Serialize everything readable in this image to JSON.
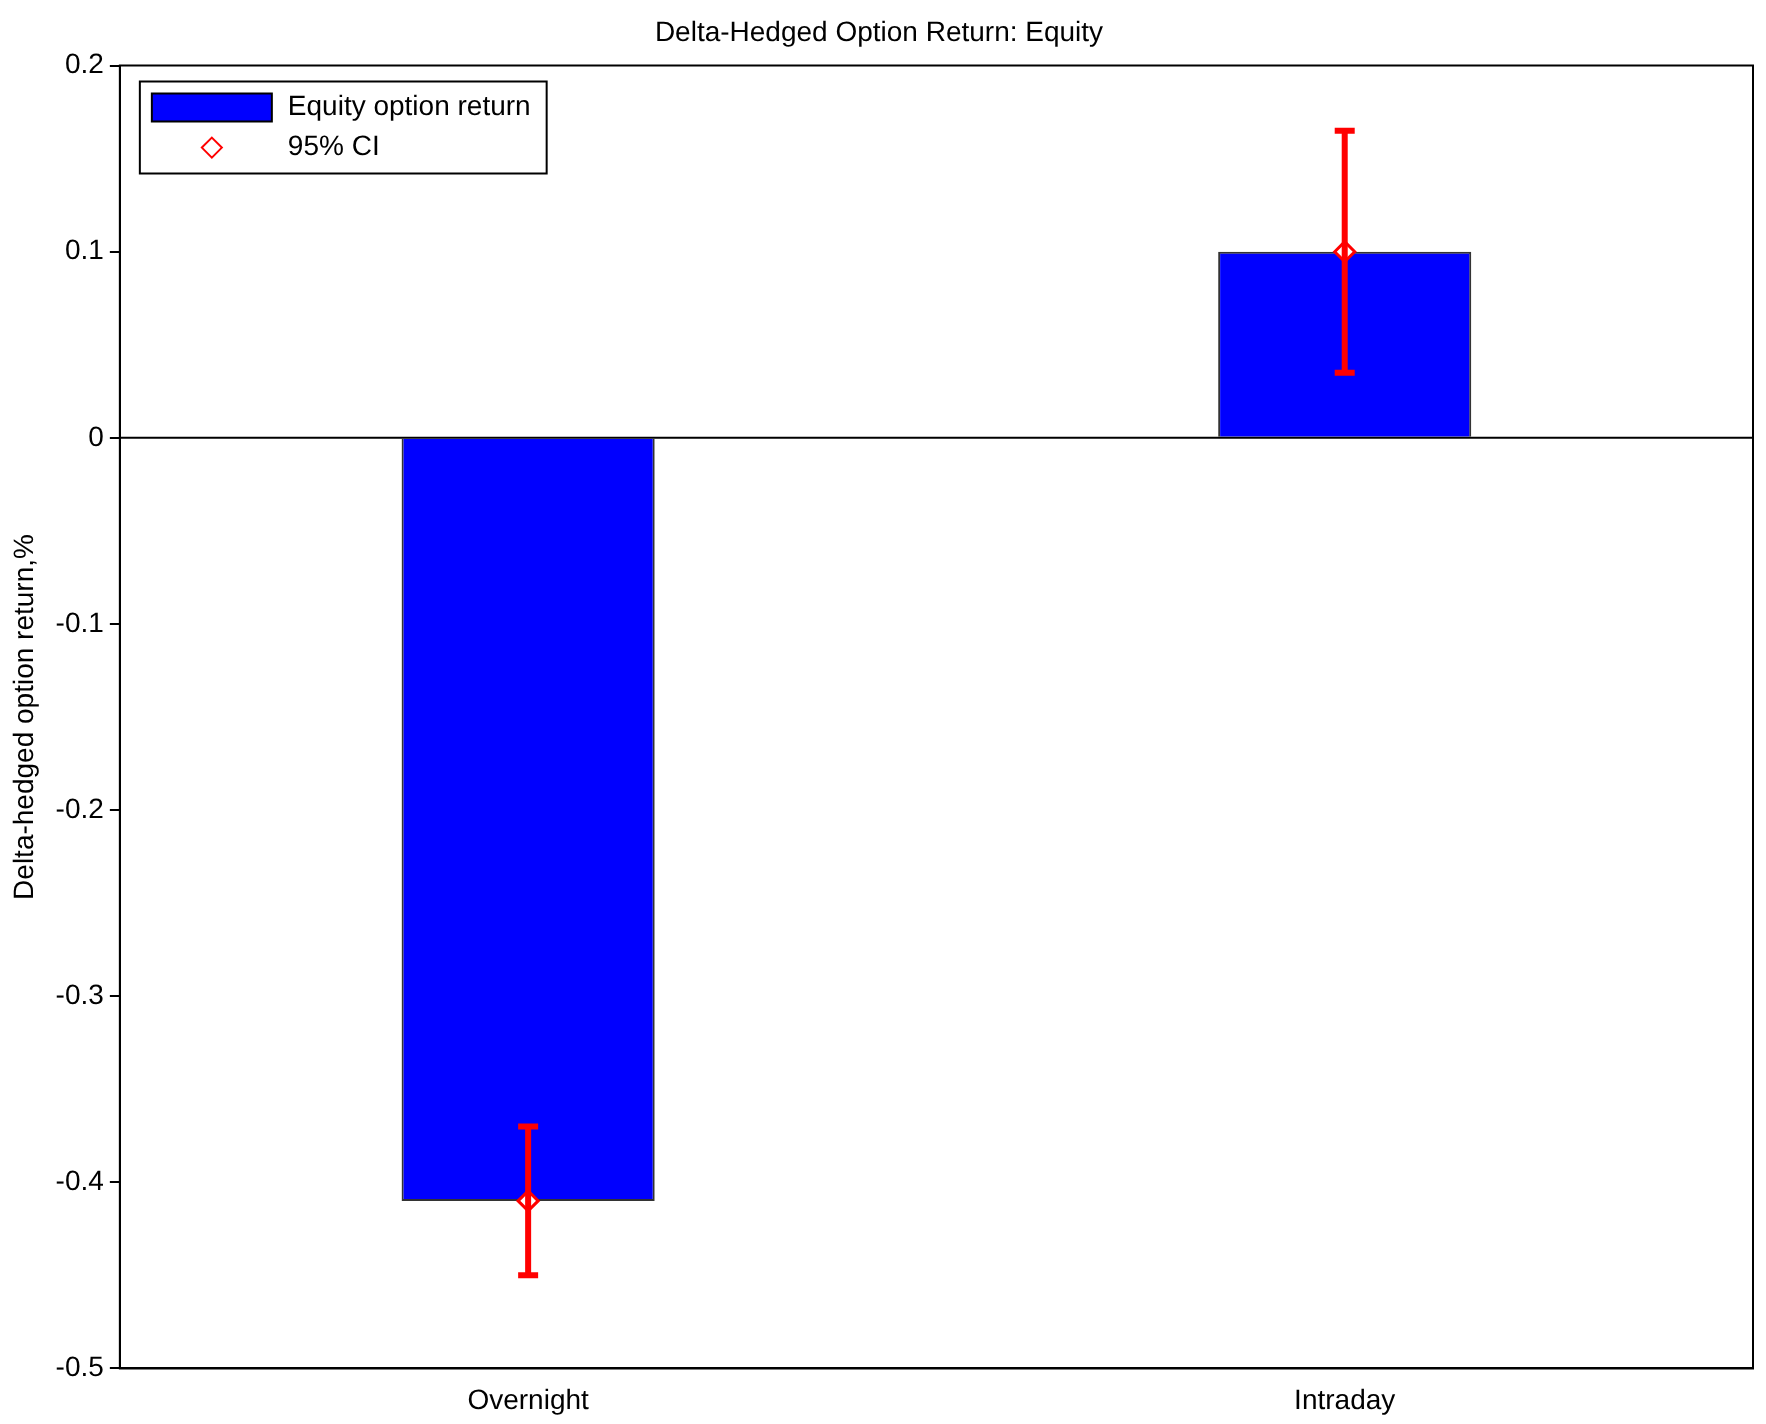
{
  "chart_data": {
    "type": "bar",
    "title": "Delta-Hedged Option Return: Equity",
    "ylabel": "Delta-hedged option return,%",
    "categories": [
      "Overnight",
      "Intraday"
    ],
    "series": [
      {
        "name": "Equity option return",
        "color": "#0000ff",
        "values": [
          -0.41,
          0.1
        ]
      },
      {
        "name": "95% CI",
        "type": "scatter",
        "color": "#ff0000",
        "x": [
          "Overnight",
          "Intraday"
        ],
        "values": [
          -0.41,
          0.1
        ],
        "errors": [
          [
            -0.45,
            -0.37
          ],
          [
            0.035,
            0.165
          ]
        ],
        "marker": "diamond"
      }
    ],
    "ref_lines": [
      {
        "axis": "y",
        "value": 0,
        "color": "#000000"
      }
    ],
    "ylim": [
      -0.5,
      0.2
    ],
    "yticks": [
      -0.5,
      -0.4,
      -0.3,
      -0.2,
      -0.1,
      0,
      0.1,
      0.2
    ],
    "grid": false,
    "legend": "top left"
  }
}
